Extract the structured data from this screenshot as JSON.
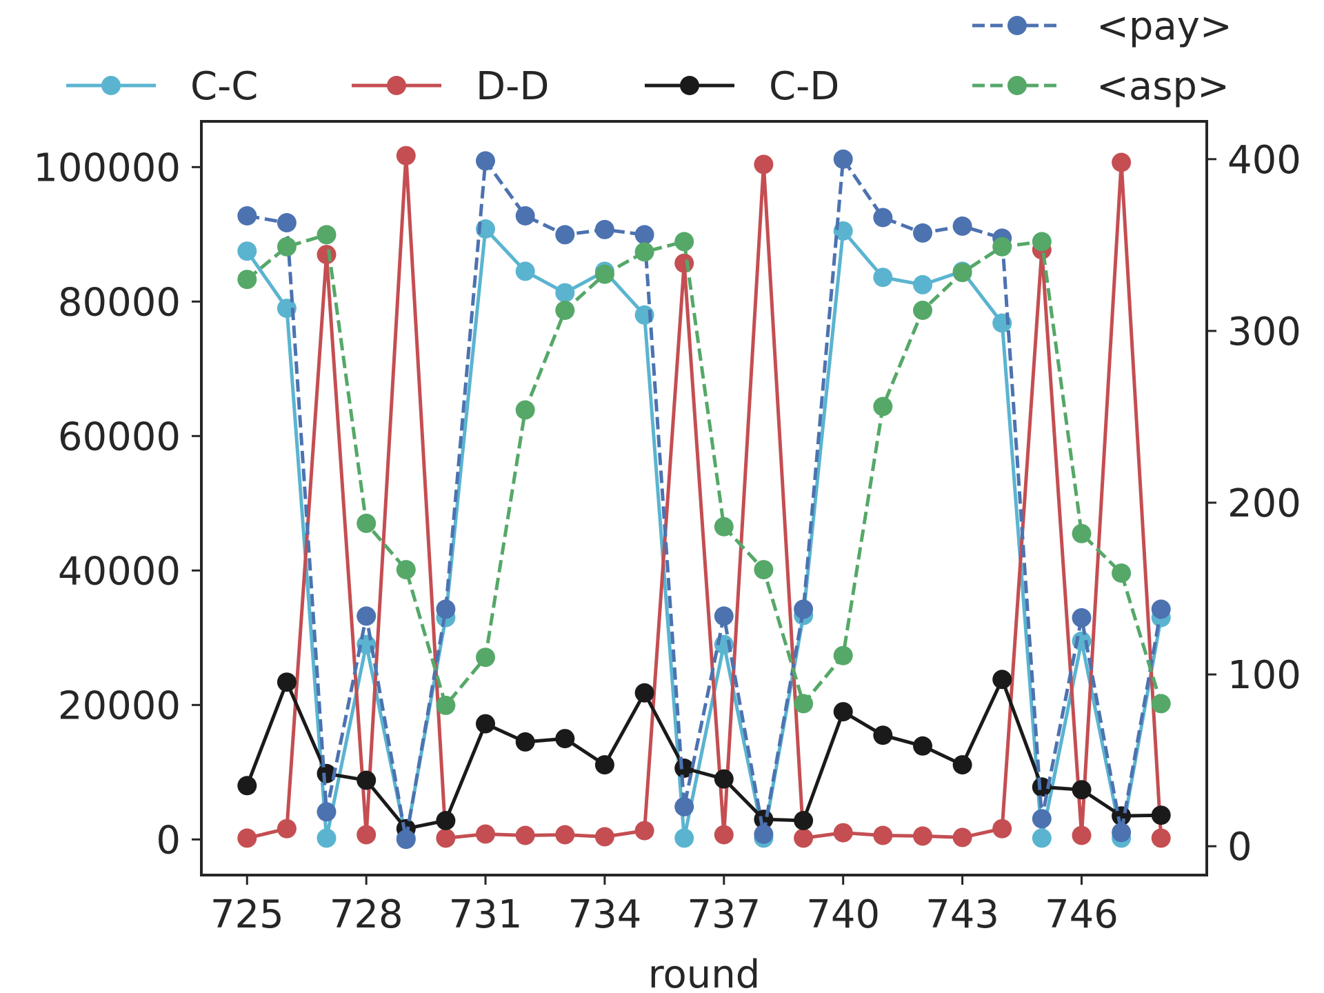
{
  "chart_data": {
    "type": "line",
    "title": "",
    "xlabel": "round",
    "ylabel_left": "",
    "ylabel_right": "",
    "x": [
      725,
      726,
      727,
      728,
      729,
      730,
      731,
      732,
      733,
      734,
      735,
      736,
      737,
      738,
      739,
      740,
      741,
      742,
      743,
      744,
      745,
      746,
      747,
      748
    ],
    "xticks": [
      "725",
      "728",
      "731",
      "734",
      "737",
      "740",
      "743",
      "746"
    ],
    "xlim": [
      723.85,
      749.15
    ],
    "y_left_ticks": [
      "0",
      "20000",
      "40000",
      "60000",
      "80000",
      "100000"
    ],
    "y_left_lim": [
      -5300,
      106800
    ],
    "y_right_ticks": [
      "0",
      "100",
      "200",
      "300",
      "400"
    ],
    "y_right_lim": [
      -16.8,
      422
    ],
    "grid": false,
    "legend_left": {
      "placement": "top",
      "entries": [
        "C-C",
        "D-D",
        "C-D"
      ]
    },
    "legend_right": {
      "placement": "top-right",
      "entries": [
        "<pay>",
        "<asp>"
      ]
    },
    "series": [
      {
        "name": "C-C",
        "axis": "left",
        "style": "solid",
        "color": "#5ab4d0",
        "values": [
          87500,
          79000,
          200,
          29000,
          200,
          33000,
          90800,
          84500,
          81300,
          84500,
          78000,
          200,
          29000,
          200,
          33300,
          90500,
          83600,
          82500,
          84500,
          76800,
          200,
          29500,
          200,
          33000
        ]
      },
      {
        "name": "D-D",
        "axis": "left",
        "style": "solid",
        "color": "#c44e52",
        "values": [
          200,
          1600,
          87000,
          700,
          101700,
          200,
          800,
          600,
          700,
          400,
          1300,
          85700,
          700,
          100400,
          200,
          1000,
          600,
          500,
          300,
          1600,
          87700,
          600,
          100700,
          200
        ]
      },
      {
        "name": "C-D",
        "axis": "left",
        "style": "solid",
        "color": "#1a1a1a",
        "values": [
          8000,
          23400,
          9800,
          8800,
          1600,
          2800,
          17200,
          14500,
          15000,
          11100,
          21800,
          10600,
          9000,
          3000,
          2800,
          19000,
          15500,
          13900,
          11100,
          23800,
          7800,
          7400,
          3500,
          3600
        ]
      },
      {
        "name": "<pay>",
        "axis": "right",
        "style": "dashed",
        "color": "#4c72b0",
        "values": [
          367,
          363,
          20,
          134,
          4,
          138,
          399,
          367,
          356,
          359,
          356,
          23,
          134,
          7,
          138,
          400,
          366,
          357,
          361,
          354,
          16,
          133,
          8,
          138
        ]
      },
      {
        "name": "<asp>",
        "axis": "right",
        "style": "dashed",
        "color": "#55a868",
        "values": [
          330,
          349,
          356,
          188,
          161,
          82,
          110,
          254,
          312,
          333,
          346,
          352,
          186,
          161,
          83,
          111,
          256,
          312,
          334,
          349,
          352,
          182,
          159,
          83
        ]
      }
    ]
  }
}
